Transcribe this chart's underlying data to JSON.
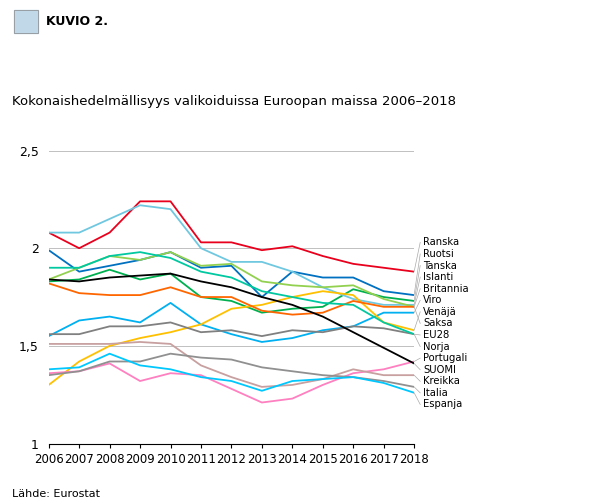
{
  "title": "Kokonaishedelmällisyys valikoiduissa Euroopan maissa 2006–2018",
  "header": "KUVIO 2.",
  "years": [
    2006,
    2007,
    2008,
    2009,
    2010,
    2011,
    2012,
    2013,
    2014,
    2015,
    2016,
    2017,
    2018
  ],
  "source": "Lähde: Eurostat",
  "series": [
    {
      "name": "Ranska",
      "color": "#e8001c",
      "data": [
        2.08,
        2.0,
        2.08,
        2.24,
        2.24,
        2.03,
        2.03,
        1.99,
        2.01,
        1.96,
        1.92,
        1.9,
        1.88
      ]
    },
    {
      "name": "Ruotsi",
      "color": "#0070c0",
      "data": [
        1.99,
        1.88,
        1.91,
        1.94,
        1.98,
        1.9,
        1.91,
        1.75,
        1.88,
        1.85,
        1.85,
        1.78,
        1.76
      ]
    },
    {
      "name": "Tanska",
      "color": "#00b050",
      "data": [
        1.83,
        1.84,
        1.89,
        1.84,
        1.87,
        1.75,
        1.73,
        1.67,
        1.69,
        1.7,
        1.79,
        1.75,
        1.73
      ]
    },
    {
      "name": "Islanti",
      "color": "#70c8e0",
      "data": [
        2.08,
        2.08,
        2.15,
        2.22,
        2.2,
        2.0,
        1.93,
        1.93,
        1.88,
        1.8,
        1.74,
        1.71,
        1.71
      ]
    },
    {
      "name": "Britannia",
      "color": "#92d050",
      "data": [
        1.84,
        1.9,
        1.96,
        1.94,
        1.98,
        1.91,
        1.92,
        1.83,
        1.81,
        1.8,
        1.81,
        1.74,
        1.7
      ]
    },
    {
      "name": "Viro",
      "color": "#00b0f0",
      "data": [
        1.55,
        1.63,
        1.65,
        1.62,
        1.72,
        1.61,
        1.56,
        1.52,
        1.54,
        1.58,
        1.6,
        1.67,
        1.67
      ]
    },
    {
      "name": "Venäjä",
      "color": "#ffc000",
      "data": [
        1.3,
        1.42,
        1.5,
        1.54,
        1.57,
        1.61,
        1.69,
        1.71,
        1.75,
        1.78,
        1.76,
        1.62,
        1.58
      ]
    },
    {
      "name": "Saksa",
      "color": "#ff6600",
      "data": [
        1.82,
        1.77,
        1.76,
        1.76,
        1.8,
        1.75,
        1.75,
        1.68,
        1.66,
        1.67,
        1.73,
        1.7,
        1.7
      ]
    },
    {
      "name": "EU28",
      "color": "#808080",
      "data": [
        1.56,
        1.56,
        1.6,
        1.6,
        1.62,
        1.57,
        1.58,
        1.55,
        1.58,
        1.57,
        1.6,
        1.59,
        1.56
      ]
    },
    {
      "name": "Norja",
      "color": "#00c8a0",
      "data": [
        1.9,
        1.9,
        1.96,
        1.98,
        1.95,
        1.88,
        1.85,
        1.78,
        1.75,
        1.72,
        1.71,
        1.62,
        1.56
      ]
    },
    {
      "name": "Portugali",
      "color": "#ff80c0",
      "data": [
        1.36,
        1.37,
        1.41,
        1.32,
        1.36,
        1.35,
        1.28,
        1.21,
        1.23,
        1.3,
        1.36,
        1.38,
        1.42
      ]
    },
    {
      "name": "SUOMI",
      "color": "#000000",
      "data": [
        1.84,
        1.83,
        1.85,
        1.86,
        1.87,
        1.83,
        1.8,
        1.75,
        1.71,
        1.65,
        1.57,
        1.49,
        1.41
      ]
    },
    {
      "name": "Kreikka",
      "color": "#c8a0a0",
      "data": [
        1.51,
        1.51,
        1.51,
        1.52,
        1.51,
        1.4,
        1.34,
        1.29,
        1.3,
        1.33,
        1.38,
        1.35,
        1.35
      ]
    },
    {
      "name": "Italia",
      "color": "#909090",
      "data": [
        1.35,
        1.37,
        1.42,
        1.42,
        1.46,
        1.44,
        1.43,
        1.39,
        1.37,
        1.35,
        1.34,
        1.32,
        1.29
      ]
    },
    {
      "name": "Espanja",
      "color": "#00c8ff",
      "data": [
        1.38,
        1.39,
        1.46,
        1.4,
        1.38,
        1.34,
        1.32,
        1.27,
        1.32,
        1.33,
        1.34,
        1.31,
        1.26
      ]
    }
  ],
  "ylim": [
    1.0,
    2.6
  ],
  "yticks": [
    1.0,
    1.5,
    2.0,
    2.5
  ],
  "ytick_labels": [
    "1",
    "1,5",
    "2",
    "2,5"
  ],
  "legend_order": [
    "Ranska",
    "Ruotsi",
    "Tanska",
    "Islanti",
    "Britannia",
    "Viro",
    "Venäjä",
    "Saksa",
    "EU28",
    "Norja",
    "Portugali",
    "SUOMI",
    "Kreikka",
    "Italia",
    "Espanja"
  ],
  "label_ystart": 2.03,
  "label_yend": 1.2,
  "background_color": "#ffffff",
  "header_bg": "#b8d8e8"
}
